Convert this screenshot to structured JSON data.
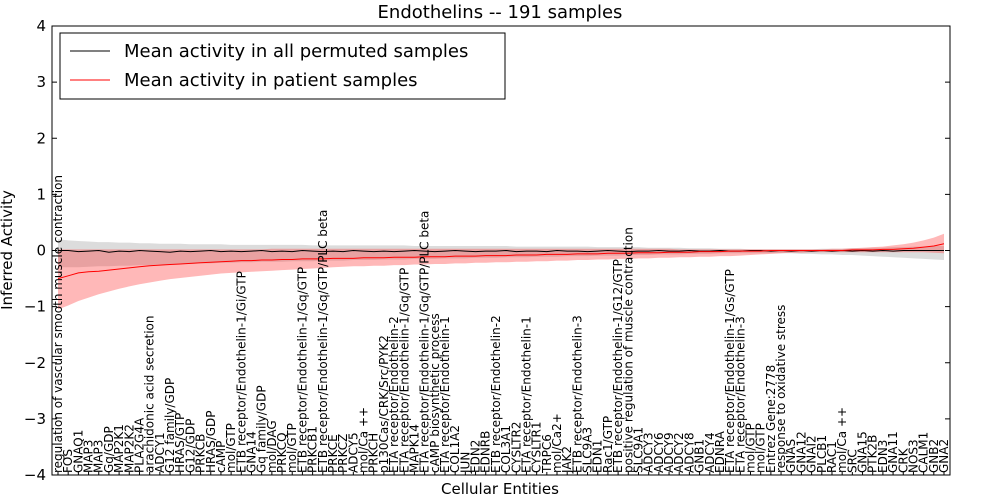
{
  "chart_data": {
    "type": "line",
    "title": "Endothelins -- 191 samples",
    "xlabel": "Cellular Entities",
    "ylabel": "Inferred Activity",
    "ylim": [
      -4,
      4
    ],
    "yticks": [
      -4,
      -3,
      -2,
      -1,
      0,
      1,
      2,
      3,
      4
    ],
    "ytick_labels": [
      "−4",
      "−3",
      "−2",
      "−1",
      "0",
      "1",
      "2",
      "3",
      "4"
    ],
    "grid": false,
    "legend_position": "top-left",
    "categories": [
      "regulation of vascular smooth muscle contraction",
      "FOS",
      "GNAQ1",
      "MAP3",
      "MAP3",
      "Gq/GDP",
      "MAP2K1",
      "MAP2K2",
      "PLA2G4A",
      "arachidonic acid secretion",
      "ADCY1",
      "G12 family/GDP",
      "HRAS/GTP",
      "G12/GDP",
      "PRKCB",
      "HRAS/GDP",
      "cAMP",
      "mol/GTP",
      "ETB receptor/Endothelin-1/Gi/GTP",
      "GNA14",
      "Gq family/GDP",
      "mol/DAG",
      "PRKCQ",
      "mol/GTP",
      "ETB receptor/Endothelin-1/Gq/GTP",
      "PRKCB1",
      "ETB receptor/Endothelin-1/Gq/GTP/PLC beta",
      "PRKCE",
      "PRKCZ",
      "ADCY5",
      "mol/Ca ++",
      "PRKCH",
      "p130Cas/CRK/Src/PYK2",
      "ETA receptor/Endothelin-2",
      "ETA receptor/Endothelin-1/Gq/GTP",
      "MAPK14",
      "ETA receptor/Endothelin-1/Gq/GTP/PLC beta",
      "cAMP biosynthetic process",
      "ETA receptor/Endothelin-1",
      "COL1A2",
      "JUN",
      "EDN2",
      "EDNRB",
      "ETB receptor/Endothelin-2",
      "COL3A1",
      "CYSLTR2",
      "ETA receptor/Endothelin-1",
      "CYSLTR1",
      "TRPC6",
      "mol/Ca2+",
      "JAK2",
      "ETB receptor/Endothelin-3",
      "SLC9A3",
      "EDN1",
      "Rac1/GTP",
      "ETB receptor/Endothelin-1/G12/GTP",
      "positive regulation of muscle contraction",
      "SLC9A1",
      "ADCY3",
      "ADCY6",
      "ADCY9",
      "ADCY2",
      "ADCY8",
      "GNB1",
      "ADCY4",
      "EDNRA",
      "ETA receptor/Endothelin-1/Gs/GTP",
      "ETA receptor/Endothelin-3",
      "mol/GTP",
      "mol/GTP",
      "Entrez Gene:2778",
      "response to oxidative stress",
      "GNAS",
      "GNA12",
      "GNAI2",
      "PLCB1",
      "RAC1",
      "mol/Ca ++",
      "SRC",
      "GNA15",
      "PTK2B",
      "EDN3",
      "GNA11",
      "CRK",
      "NOS3",
      "CALM1",
      "GNB2",
      "GNA2"
    ],
    "series": [
      {
        "name": "Mean activity in all permuted samples",
        "color": "#000000",
        "values": [
          0.0,
          0.0,
          -0.02,
          -0.01,
          0.0,
          -0.03,
          -0.01,
          -0.02,
          0.0,
          -0.01,
          -0.02,
          -0.03,
          -0.01,
          -0.02,
          -0.01,
          0.0,
          -0.02,
          -0.01,
          -0.02,
          -0.01,
          0.0,
          -0.02,
          -0.01,
          -0.02,
          0.0,
          -0.01,
          -0.02,
          -0.01,
          -0.02,
          0.0,
          -0.01,
          -0.02,
          -0.01,
          -0.02,
          -0.01,
          0.0,
          -0.01,
          -0.02,
          -0.01,
          0.0,
          -0.01,
          -0.02,
          -0.01,
          -0.01,
          0.0,
          -0.02,
          -0.01,
          -0.01,
          -0.02,
          0.0,
          -0.01,
          -0.01,
          -0.02,
          -0.01,
          0.0,
          -0.01,
          -0.02,
          -0.01,
          -0.01,
          0.0,
          -0.01,
          -0.01,
          0.0,
          -0.01,
          -0.01,
          0.0,
          -0.01,
          -0.01,
          0.0,
          0.0,
          -0.01,
          0.0,
          -0.01,
          0.0,
          -0.01,
          0.0,
          -0.01,
          0.0,
          -0.01,
          0.0,
          -0.01,
          0.0,
          -0.01,
          0.0,
          0.0,
          0.0,
          0.0,
          0.0
        ],
        "band_lower": [
          -0.3,
          -0.3,
          -0.3,
          -0.29,
          -0.28,
          -0.28,
          -0.27,
          -0.27,
          -0.26,
          -0.26,
          -0.25,
          -0.25,
          -0.24,
          -0.24,
          -0.23,
          -0.23,
          -0.22,
          -0.22,
          -0.21,
          -0.21,
          -0.2,
          -0.2,
          -0.2,
          -0.19,
          -0.19,
          -0.19,
          -0.18,
          -0.18,
          -0.18,
          -0.17,
          -0.17,
          -0.17,
          -0.16,
          -0.16,
          -0.16,
          -0.15,
          -0.15,
          -0.15,
          -0.14,
          -0.14,
          -0.14,
          -0.13,
          -0.13,
          -0.13,
          -0.12,
          -0.12,
          -0.12,
          -0.11,
          -0.11,
          -0.11,
          -0.1,
          -0.1,
          -0.1,
          -0.09,
          -0.09,
          -0.09,
          -0.08,
          -0.08,
          -0.08,
          -0.07,
          -0.07,
          -0.07,
          -0.06,
          -0.06,
          -0.06,
          -0.05,
          -0.05,
          -0.05,
          -0.05,
          -0.05,
          -0.05,
          -0.05,
          -0.05,
          -0.06,
          -0.06,
          -0.07,
          -0.07,
          -0.08,
          -0.08,
          -0.09,
          -0.1,
          -0.11,
          -0.12,
          -0.13,
          -0.14,
          -0.15,
          -0.16,
          -0.17
        ],
        "band_upper": [
          0.2,
          0.18,
          0.17,
          0.16,
          0.15,
          0.15,
          0.14,
          0.14,
          0.13,
          0.13,
          0.12,
          0.12,
          0.12,
          0.11,
          0.11,
          0.11,
          0.11,
          0.1,
          0.1,
          0.1,
          0.1,
          0.1,
          0.1,
          0.1,
          0.1,
          0.09,
          0.09,
          0.09,
          0.09,
          0.09,
          0.09,
          0.09,
          0.09,
          0.09,
          0.09,
          0.08,
          0.08,
          0.08,
          0.08,
          0.08,
          0.08,
          0.08,
          0.08,
          0.08,
          0.08,
          0.07,
          0.07,
          0.07,
          0.07,
          0.07,
          0.07,
          0.07,
          0.07,
          0.06,
          0.06,
          0.06,
          0.06,
          0.06,
          0.05,
          0.05,
          0.05,
          0.05,
          0.04,
          0.04,
          0.04,
          0.03,
          0.03,
          0.03,
          0.02,
          0.02,
          0.02,
          0.02,
          0.02,
          0.02,
          0.02,
          0.03,
          0.03,
          0.03,
          0.04,
          0.04,
          0.05,
          0.05,
          0.06,
          0.06,
          0.07,
          0.07,
          0.08,
          0.08
        ]
      },
      {
        "name": "Mean activity in patient samples",
        "color": "#ff0000",
        "values": [
          -0.5,
          -0.45,
          -0.4,
          -0.38,
          -0.37,
          -0.35,
          -0.33,
          -0.31,
          -0.29,
          -0.27,
          -0.26,
          -0.25,
          -0.24,
          -0.23,
          -0.22,
          -0.21,
          -0.2,
          -0.19,
          -0.18,
          -0.18,
          -0.17,
          -0.17,
          -0.16,
          -0.16,
          -0.15,
          -0.15,
          -0.15,
          -0.14,
          -0.14,
          -0.14,
          -0.13,
          -0.13,
          -0.13,
          -0.12,
          -0.12,
          -0.12,
          -0.11,
          -0.11,
          -0.11,
          -0.1,
          -0.1,
          -0.1,
          -0.09,
          -0.09,
          -0.09,
          -0.08,
          -0.08,
          -0.08,
          -0.07,
          -0.07,
          -0.07,
          -0.06,
          -0.06,
          -0.06,
          -0.05,
          -0.05,
          -0.05,
          -0.04,
          -0.04,
          -0.04,
          -0.03,
          -0.03,
          -0.03,
          -0.02,
          -0.02,
          -0.02,
          -0.01,
          -0.01,
          -0.01,
          -0.01,
          0.0,
          0.0,
          0.0,
          0.0,
          0.0,
          0.0,
          0.0,
          0.0,
          0.01,
          0.01,
          0.01,
          0.02,
          0.02,
          0.03,
          0.04,
          0.06,
          0.08,
          0.12
        ],
        "band_lower": [
          -1.05,
          -0.98,
          -0.9,
          -0.84,
          -0.78,
          -0.73,
          -0.68,
          -0.64,
          -0.6,
          -0.57,
          -0.54,
          -0.51,
          -0.49,
          -0.47,
          -0.45,
          -0.43,
          -0.41,
          -0.4,
          -0.39,
          -0.38,
          -0.37,
          -0.36,
          -0.35,
          -0.34,
          -0.33,
          -0.32,
          -0.31,
          -0.3,
          -0.29,
          -0.28,
          -0.28,
          -0.27,
          -0.27,
          -0.26,
          -0.26,
          -0.25,
          -0.25,
          -0.24,
          -0.24,
          -0.23,
          -0.23,
          -0.22,
          -0.22,
          -0.21,
          -0.21,
          -0.2,
          -0.2,
          -0.19,
          -0.19,
          -0.18,
          -0.18,
          -0.17,
          -0.17,
          -0.16,
          -0.16,
          -0.15,
          -0.15,
          -0.14,
          -0.14,
          -0.13,
          -0.13,
          -0.12,
          -0.12,
          -0.11,
          -0.11,
          -0.1,
          -0.1,
          -0.09,
          -0.08,
          -0.07,
          -0.06,
          -0.05,
          -0.04,
          -0.04,
          -0.03,
          -0.03,
          -0.03,
          -0.03,
          -0.03,
          -0.03,
          -0.03,
          -0.03,
          -0.03,
          -0.03,
          -0.03,
          -0.03,
          -0.04,
          -0.05
        ],
        "band_upper": [
          0.02,
          0.02,
          0.02,
          0.02,
          0.02,
          0.02,
          0.02,
          0.02,
          0.02,
          0.02,
          0.02,
          0.02,
          0.02,
          0.02,
          0.02,
          0.02,
          0.02,
          0.02,
          0.02,
          0.02,
          0.02,
          0.03,
          0.03,
          0.03,
          0.03,
          0.03,
          0.03,
          0.03,
          0.03,
          0.03,
          0.03,
          0.03,
          0.03,
          0.03,
          0.03,
          0.03,
          0.03,
          0.03,
          0.03,
          0.03,
          0.03,
          0.03,
          0.03,
          0.03,
          0.03,
          0.03,
          0.03,
          0.03,
          0.03,
          0.03,
          0.03,
          0.03,
          0.03,
          0.03,
          0.03,
          0.03,
          0.03,
          0.03,
          0.03,
          0.03,
          0.03,
          0.02,
          0.02,
          0.02,
          0.02,
          0.02,
          0.02,
          0.02,
          0.02,
          0.02,
          0.02,
          0.02,
          0.02,
          0.02,
          0.02,
          0.02,
          0.03,
          0.03,
          0.04,
          0.05,
          0.06,
          0.07,
          0.09,
          0.11,
          0.14,
          0.18,
          0.23,
          0.3
        ]
      }
    ]
  }
}
